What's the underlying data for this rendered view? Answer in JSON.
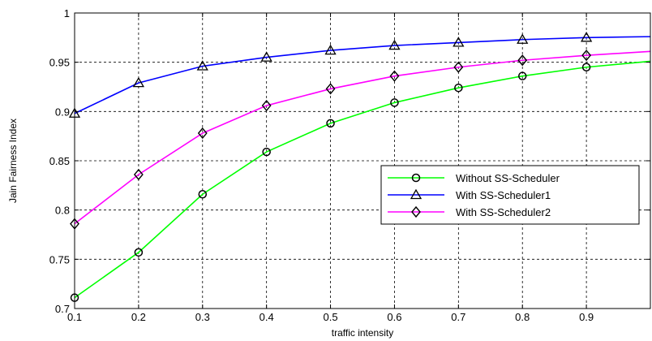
{
  "chart_data": {
    "type": "line",
    "title": "",
    "xlabel": "traffic intensity",
    "ylabel": "Jain Fairness Index",
    "x": [
      0.1,
      0.2,
      0.3,
      0.4,
      0.5,
      0.6,
      0.7,
      0.8,
      0.9,
      1.0
    ],
    "xlim": [
      0.1,
      1.0
    ],
    "ylim": [
      0.7,
      1.0
    ],
    "xticks": [
      0.1,
      0.2,
      0.3,
      0.4,
      0.5,
      0.6,
      0.7,
      0.8,
      0.9
    ],
    "xtick_labels": [
      "0.1",
      "0.2",
      "0.3",
      "0.4",
      "0.5",
      "0.6",
      "0.7",
      "0.8",
      "0.9"
    ],
    "yticks": [
      0.7,
      0.75,
      0.8,
      0.85,
      0.9,
      0.95,
      1.0
    ],
    "ytick_labels": [
      "0.7",
      "0.75",
      "0.8",
      "0.85",
      "0.9",
      "0.95",
      "1"
    ],
    "grid": true,
    "legend_position": "center-right",
    "series": [
      {
        "name": "Without SS-Scheduler",
        "color": "#00ff00",
        "marker": "circle",
        "values": [
          0.711,
          0.757,
          0.816,
          0.859,
          0.888,
          0.909,
          0.924,
          0.936,
          0.945,
          0.951
        ]
      },
      {
        "name": "With SS-Scheduler1",
        "color": "#0000ff",
        "marker": "triangle",
        "values": [
          0.898,
          0.929,
          0.946,
          0.955,
          0.962,
          0.967,
          0.97,
          0.973,
          0.975,
          0.976
        ]
      },
      {
        "name": "With SS-Scheduler2",
        "color": "#ff00ff",
        "marker": "diamond",
        "values": [
          0.786,
          0.836,
          0.878,
          0.906,
          0.923,
          0.936,
          0.945,
          0.952,
          0.957,
          0.961
        ]
      }
    ]
  }
}
